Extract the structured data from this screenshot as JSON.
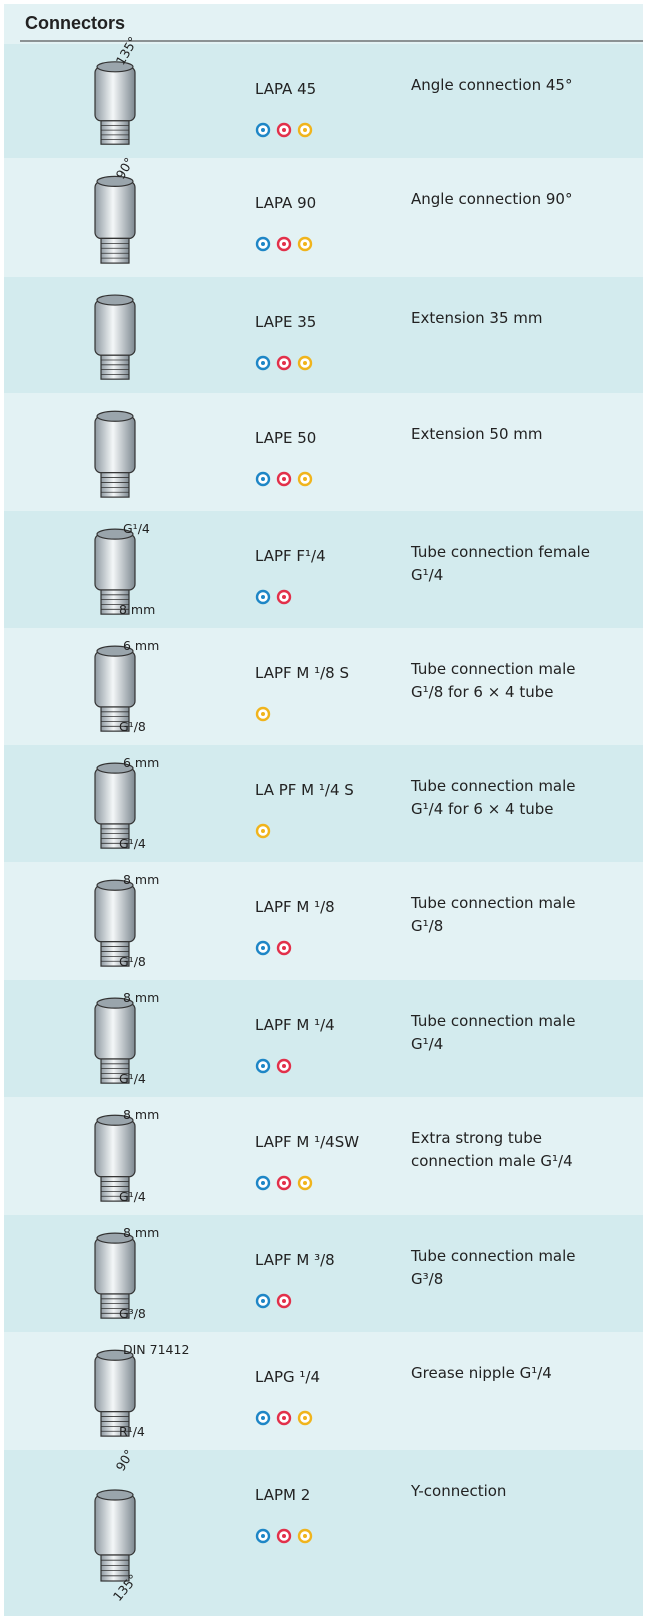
{
  "header": {
    "title": "Connectors"
  },
  "rows": [
    {
      "code": "LAPA 45",
      "description": [
        "Angle connection 45°"
      ],
      "labels": [
        "135°"
      ],
      "colors": [
        "#1e86c6",
        "#e2304a",
        "#f0b41c"
      ]
    },
    {
      "code": "LAPA 90",
      "description": [
        "Angle connection 90°"
      ],
      "labels": [
        "90°"
      ],
      "colors": [
        "#1e86c6",
        "#e2304a",
        "#f0b41c"
      ]
    },
    {
      "code": "LAPE 35",
      "description": [
        "Extension 35 mm"
      ],
      "labels": [],
      "colors": [
        "#1e86c6",
        "#e2304a",
        "#f0b41c"
      ]
    },
    {
      "code": "LAPE 50",
      "description": [
        "Extension 50 mm"
      ],
      "labels": [],
      "colors": [
        "#1e86c6",
        "#e2304a",
        "#f0b41c"
      ]
    },
    {
      "code": "LAPF F¹/4",
      "description": [
        "Tube connection female",
        "G¹/4"
      ],
      "labels": [
        "G¹/4",
        "8 mm"
      ],
      "colors": [
        "#1e86c6",
        "#e2304a"
      ]
    },
    {
      "code": "LAPF M ¹/8 S",
      "description": [
        "Tube connection male",
        "G¹/8 for 6 × 4 tube"
      ],
      "labels": [
        "6 mm",
        "G¹/8"
      ],
      "colors": [
        "#f0b41c"
      ]
    },
    {
      "code": "LA PF M ¹/4 S",
      "description": [
        "Tube connection male",
        "G¹/4 for 6 × 4 tube"
      ],
      "labels": [
        "6 mm",
        "G¹/4"
      ],
      "colors": [
        "#f0b41c"
      ]
    },
    {
      "code": "LAPF M ¹/8",
      "description": [
        "Tube connection male",
        "G¹/8"
      ],
      "labels": [
        "8 mm",
        "G¹/8"
      ],
      "colors": [
        "#1e86c6",
        "#e2304a"
      ]
    },
    {
      "code": "LAPF M ¹/4",
      "description": [
        "Tube connection male",
        "G¹/4"
      ],
      "labels": [
        "8 mm",
        "G¹/4"
      ],
      "colors": [
        "#1e86c6",
        "#e2304a"
      ]
    },
    {
      "code": "LAPF M ¹/4SW",
      "description": [
        "Extra strong tube",
        "connection male G¹/4"
      ],
      "labels": [
        "8 mm",
        "G¹/4"
      ],
      "colors": [
        "#1e86c6",
        "#e2304a",
        "#f0b41c"
      ]
    },
    {
      "code": "LAPF M ³/8",
      "description": [
        "Tube connection male",
        "G³/8"
      ],
      "labels": [
        "8 mm",
        "G³/8"
      ],
      "colors": [
        "#1e86c6",
        "#e2304a"
      ]
    },
    {
      "code": "LAPG ¹/4",
      "description": [
        "Grease nipple G¹/4"
      ],
      "labels": [
        "DIN 71412",
        "R¹/4"
      ],
      "colors": [
        "#1e86c6",
        "#e2304a",
        "#f0b41c"
      ]
    },
    {
      "code": "LAPM 2",
      "description": [
        "Y-connection"
      ],
      "labels": [
        "90°",
        "135°"
      ],
      "colors": [
        "#1e86c6",
        "#e2304a",
        "#f0b41c"
      ]
    }
  ]
}
